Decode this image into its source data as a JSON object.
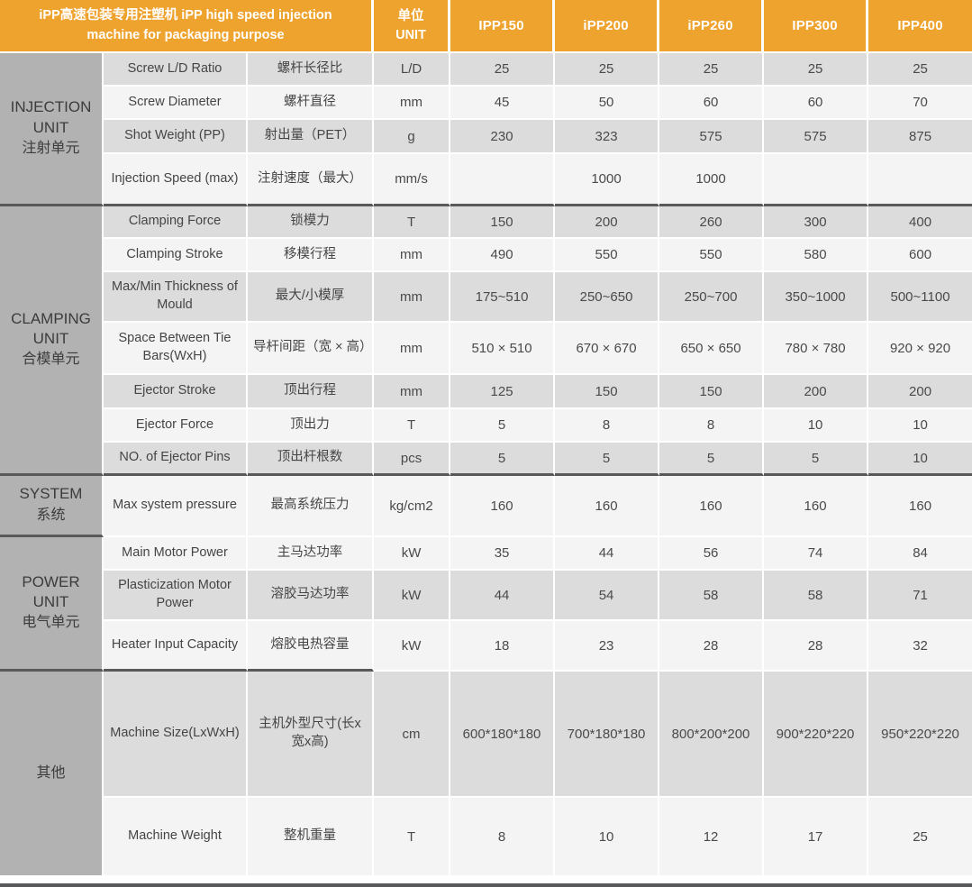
{
  "chart_data": {
    "type": "table",
    "title": "iPP高速包装专用注塑机 iPP high speed injection machine for packaging purpose",
    "unit_header": {
      "zh": "单位",
      "en": "UNIT"
    },
    "models": [
      "IPP150",
      "iPP200",
      "iPP260",
      "IPP300",
      "IPP400"
    ],
    "sections": [
      {
        "group_en": "INJECTION UNIT",
        "group_zh": "注射单元",
        "divider_after": "full",
        "rows": [
          {
            "en": "Screw L/D Ratio",
            "zh": "螺杆长径比",
            "unit": "L/D",
            "values": [
              "25",
              "25",
              "25",
              "25",
              "25"
            ],
            "shade": "dark"
          },
          {
            "en": "Screw Diameter",
            "zh": "螺杆直径",
            "unit": "mm",
            "values": [
              "45",
              "50",
              "60",
              "60",
              "70"
            ],
            "shade": "light"
          },
          {
            "en": "Shot Weight (PP)",
            "zh": "射出量（PET）",
            "unit": "g",
            "values": [
              "230",
              "323",
              "575",
              "575",
              "875"
            ],
            "shade": "dark"
          },
          {
            "en": "Injection Speed (max)",
            "zh": "注射速度（最大）",
            "unit": "mm/s",
            "values": [
              "",
              "1000",
              "1000",
              "",
              ""
            ],
            "shade": "light"
          }
        ]
      },
      {
        "group_en": "CLAMPING UNIT",
        "group_zh": "合模单元",
        "divider_after": "full",
        "rows": [
          {
            "en": "Clamping Force",
            "zh": "锁模力",
            "unit": "T",
            "values": [
              "150",
              "200",
              "260",
              "300",
              "400"
            ],
            "shade": "dark"
          },
          {
            "en": "Clamping Stroke",
            "zh": "移模行程",
            "unit": "mm",
            "values": [
              "490",
              "550",
              "550",
              "580",
              "600"
            ],
            "shade": "light"
          },
          {
            "en": "Max/Min Thickness of Mould",
            "zh": "最大/小模厚",
            "unit": "mm",
            "values": [
              "175~510",
              "250~650",
              "250~700",
              "350~1000",
              "500~1100"
            ],
            "shade": "dark"
          },
          {
            "en": "Space Between Tie Bars(WxH)",
            "zh": "导杆间距（宽 × 高）",
            "unit": "mm",
            "values": [
              "510 × 510",
              "670 × 670",
              "650 × 650",
              "780 × 780",
              "920 × 920"
            ],
            "shade": "light"
          },
          {
            "en": "Ejector Stroke",
            "zh": "顶出行程",
            "unit": "mm",
            "values": [
              "125",
              "150",
              "150",
              "200",
              "200"
            ],
            "shade": "dark"
          },
          {
            "en": "Ejector Force",
            "zh": "顶出力",
            "unit": "T",
            "values": [
              "5",
              "8",
              "8",
              "10",
              "10"
            ],
            "shade": "light"
          },
          {
            "en": "NO. of Ejector Pins",
            "zh": "顶出杆根数",
            "unit": "pcs",
            "values": [
              "5",
              "5",
              "5",
              "5",
              "10"
            ],
            "shade": "dark"
          }
        ]
      },
      {
        "group_en": "SYSTEM",
        "group_zh": "系统",
        "divider_after": "left",
        "rows": [
          {
            "en": "Max system pressure",
            "zh": "最高系统压力",
            "unit": "kg/cm2",
            "values": [
              "160",
              "160",
              "160",
              "160",
              "160"
            ],
            "shade": "light"
          }
        ]
      },
      {
        "group_en": "POWER UNIT",
        "group_zh": "电气单元",
        "divider_after": "left3",
        "rows": [
          {
            "en": "Main Motor Power",
            "zh": "主马达功率",
            "unit": "kW",
            "values": [
              "35",
              "44",
              "56",
              "74",
              "84"
            ],
            "shade": "light"
          },
          {
            "en": "Plasticization Motor Power",
            "zh": "溶胶马达功率",
            "unit": "kW",
            "values": [
              "44",
              "54",
              "58",
              "58",
              "71"
            ],
            "shade": "dark"
          },
          {
            "en": "Heater Input Capacity",
            "zh": "熔胶电热容量",
            "unit": "kW",
            "values": [
              "18",
              "23",
              "28",
              "28",
              "32"
            ],
            "shade": "light"
          }
        ]
      },
      {
        "group_en": "",
        "group_zh": "其他",
        "divider_after": "none",
        "rows": [
          {
            "en": "Machine Size(LxWxH)",
            "zh": "主机外型尺寸(长x宽x高)",
            "unit": "cm",
            "values": [
              "600*180*180",
              "700*180*180",
              "800*200*200",
              "900*220*220",
              "950*220*220"
            ],
            "shade": "dark"
          },
          {
            "en": "Machine Weight",
            "zh": "整机重量",
            "unit": "T",
            "values": [
              "8",
              "10",
              "12",
              "17",
              "25"
            ],
            "shade": "light"
          }
        ]
      }
    ],
    "colors": {
      "accent": "#efa32f",
      "group_background": "#b2b2b2",
      "row_dark": "#dcdcdc",
      "row_light": "#f4f4f4",
      "divider": "#58595b",
      "header_text": "#ffffff",
      "body_text": "#454545"
    }
  }
}
